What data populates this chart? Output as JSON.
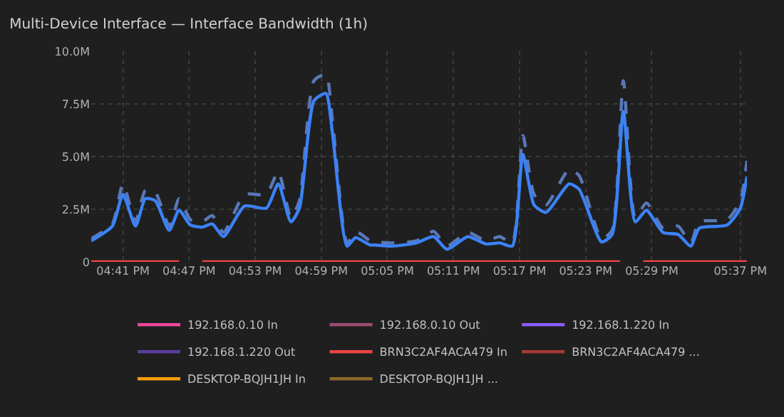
{
  "chart_data": {
    "type": "line",
    "title": "Multi-Device Interface — Interface Bandwidth (1h)",
    "x": [
      16.635,
      16.667,
      16.683,
      16.702,
      16.717,
      16.732,
      16.753,
      16.768,
      16.785,
      16.803,
      16.818,
      16.835,
      16.867,
      16.9,
      16.918,
      16.937,
      16.95,
      16.972,
      16.99,
      17.0,
      17.022,
      17.035,
      17.057,
      17.063,
      17.09,
      17.127,
      17.153,
      17.173,
      17.205,
      17.232,
      17.253,
      17.272,
      17.288,
      17.305,
      17.323,
      17.358,
      17.373,
      17.407,
      17.423,
      17.44,
      17.458,
      17.475,
      17.5,
      17.523,
      17.542,
      17.555,
      17.597,
      17.617,
      17.627
    ],
    "series": [
      {
        "name": "192.168.0.10 In",
        "color": "#ec4899",
        "values": [
          null,
          null,
          null,
          null,
          null,
          null,
          null,
          null,
          null,
          null,
          null,
          null,
          null,
          null,
          null,
          null,
          null,
          null,
          null,
          null,
          null,
          null,
          null,
          null,
          null,
          null,
          null,
          null,
          null,
          null,
          null,
          null,
          null,
          null,
          null,
          null,
          null,
          null,
          null,
          null,
          null,
          null,
          null,
          null,
          null,
          null,
          null,
          null,
          null
        ]
      },
      {
        "name": "192.168.0.10 Out",
        "color": "#9d4b73",
        "values": [
          null,
          null,
          null,
          null,
          null,
          null,
          null,
          null,
          null,
          null,
          null,
          null,
          null,
          null,
          null,
          null,
          null,
          null,
          null,
          null,
          null,
          null,
          null,
          null,
          null,
          null,
          null,
          null,
          null,
          null,
          null,
          null,
          null,
          null,
          null,
          null,
          null,
          null,
          null,
          null,
          null,
          null,
          null,
          null,
          null,
          null,
          null,
          null,
          null
        ]
      },
      {
        "name": "192.168.1.220 In",
        "color": "#8b5cf6",
        "values": [
          null,
          null,
          null,
          null,
          null,
          null,
          null,
          null,
          null,
          null,
          null,
          null,
          null,
          null,
          null,
          null,
          null,
          null,
          null,
          null,
          null,
          null,
          null,
          null,
          null,
          null,
          null,
          null,
          null,
          null,
          null,
          null,
          null,
          null,
          null,
          null,
          null,
          null,
          null,
          null,
          null,
          null,
          null,
          null,
          null,
          null,
          null,
          null,
          null
        ]
      },
      {
        "name": "192.168.1.220 Out",
        "color": "#5b3f9e",
        "values": [
          null,
          null,
          null,
          null,
          null,
          null,
          null,
          null,
          null,
          null,
          null,
          null,
          null,
          null,
          null,
          null,
          null,
          null,
          null,
          null,
          null,
          null,
          null,
          null,
          null,
          null,
          null,
          null,
          null,
          null,
          null,
          null,
          null,
          null,
          null,
          null,
          null,
          null,
          null,
          null,
          null,
          null,
          null,
          null,
          null,
          null,
          null,
          null,
          null
        ]
      },
      {
        "name": "BRN3C2AF4ACA479 In",
        "color": "#ef4444",
        "x": [
          16.635,
          16.768,
          16.785,
          16.803,
          17.435,
          17.455,
          17.47,
          17.627
        ],
        "values": [
          0,
          0,
          null,
          0,
          0,
          null,
          0,
          0
        ]
      },
      {
        "name": "BRN3C2AF4ACA479 ...",
        "color": "#a33a36",
        "values": [
          null,
          null,
          null,
          null,
          null,
          null,
          null,
          null,
          null,
          null,
          null,
          null,
          null,
          null,
          null,
          null,
          null,
          null,
          null,
          null,
          null,
          null,
          null,
          null,
          null,
          null,
          null,
          null,
          null,
          null,
          null,
          null,
          null,
          null,
          null,
          null,
          null,
          null,
          null,
          null,
          null,
          null,
          null,
          null,
          null,
          null,
          null,
          null,
          null
        ]
      },
      {
        "name": "DESKTOP-BQJH1JH In",
        "color": "#f59e0b",
        "values": [
          null,
          null,
          null,
          null,
          null,
          null,
          null,
          null,
          null,
          null,
          null,
          null,
          null,
          null,
          null,
          null,
          null,
          null,
          null,
          null,
          null,
          null,
          null,
          null,
          null,
          null,
          null,
          null,
          null,
          null,
          null,
          null,
          null,
          null,
          null,
          null,
          null,
          null,
          null,
          null,
          null,
          null,
          null,
          null,
          null,
          null,
          null,
          null,
          null
        ]
      },
      {
        "name": "DESKTOP-BQJH1JH ...",
        "color": "#8a6a2a",
        "values": [
          null,
          null,
          null,
          null,
          null,
          null,
          null,
          null,
          null,
          null,
          null,
          null,
          null,
          null,
          null,
          null,
          null,
          null,
          null,
          null,
          null,
          null,
          null,
          null,
          null,
          null,
          null,
          null,
          null,
          null,
          null,
          null,
          null,
          null,
          null,
          null,
          null,
          null,
          null,
          null,
          null,
          null,
          null,
          null,
          null,
          null,
          null,
          null,
          null
        ]
      },
      {
        "color": "#5a78b8",
        "line_style": "dashed",
        "values": [
          1.1,
          1.8,
          3.7,
          1.9,
          3.4,
          3.3,
          1.7,
          3.0,
          2.0,
          1.9,
          2.2,
          1.4,
          3.2,
          3.2,
          4.3,
          2.1,
          2.9,
          8.6,
          8.9,
          6.7,
          0.9,
          1.45,
          1.0,
          0.95,
          0.9,
          1.0,
          1.45,
          0.75,
          1.4,
          1.0,
          1.2,
          0.9,
          6.0,
          3.2,
          2.7,
          4.4,
          4.1,
          1.1,
          1.5,
          8.6,
          2.1,
          2.8,
          1.6,
          1.7,
          0.9,
          1.9,
          2.0,
          2.9,
          4.8
        ]
      },
      {
        "color": "#3b82f6",
        "line_style": "solid",
        "values": [
          1.0,
          1.7,
          3.2,
          1.7,
          3.0,
          2.9,
          1.5,
          2.45,
          1.75,
          1.65,
          1.8,
          1.2,
          2.65,
          2.55,
          3.7,
          1.9,
          2.55,
          7.65,
          8.0,
          6.1,
          0.75,
          1.15,
          0.8,
          0.8,
          0.75,
          0.9,
          1.2,
          0.6,
          1.2,
          0.85,
          0.9,
          0.75,
          5.1,
          2.7,
          2.35,
          3.7,
          3.45,
          0.95,
          1.3,
          7.15,
          1.9,
          2.45,
          1.4,
          1.3,
          0.75,
          1.6,
          1.75,
          2.55,
          4.05
        ]
      }
    ],
    "xlim": [
      16.635,
      17.627
    ],
    "xticks": [
      {
        "value": 16.683,
        "label": "04:41 PM"
      },
      {
        "value": 16.783,
        "label": "04:47 PM"
      },
      {
        "value": 16.883,
        "label": "04:53 PM"
      },
      {
        "value": 16.983,
        "label": "04:59 PM"
      },
      {
        "value": 17.083,
        "label": "05:05 PM"
      },
      {
        "value": 17.183,
        "label": "05:11 PM"
      },
      {
        "value": 17.283,
        "label": "05:17 PM"
      },
      {
        "value": 17.383,
        "label": "05:23 PM"
      },
      {
        "value": 17.483,
        "label": "05:29 PM"
      },
      {
        "value": 17.617,
        "label": "05:37 PM"
      }
    ],
    "ylim": [
      0,
      10
    ],
    "yticks": [
      0,
      {
        "value": 2.5,
        "label": "2.5M"
      },
      {
        "value": 5,
        "label": "5.0M"
      },
      {
        "value": 7.5,
        "label": "7.5M"
      },
      {
        "value": 10,
        "label": "10.0M"
      }
    ],
    "grid": true,
    "legend": "bottom",
    "marker": "none"
  }
}
